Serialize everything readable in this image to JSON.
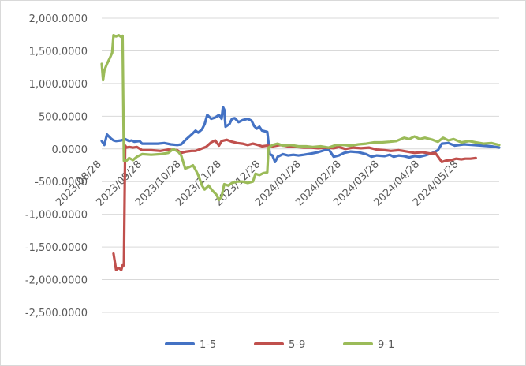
{
  "chart_data": {
    "type": "line",
    "title": "",
    "xlabel": "",
    "ylabel": "",
    "ylim": [
      -2500,
      2000
    ],
    "yticks": [
      "2,000.0000",
      "1,500.0000",
      "1,000.0000",
      "500.0000",
      "0.0000",
      "-500.0000",
      "-1,000.0000",
      "-1,500.0000",
      "-2,000.0000",
      "-2,500.0000"
    ],
    "ytick_values": [
      2000,
      1500,
      1000,
      500,
      0,
      -500,
      -1000,
      -1500,
      -2000,
      -2500
    ],
    "grid": true,
    "legend": "bottom",
    "xlim": [
      "2023/08/28",
      "2024/06/28"
    ],
    "xticks": [
      "2023/08/28",
      "2023/09/28",
      "2023/10/28",
      "2023/11/28",
      "2023/12/28",
      "2024/01/28",
      "2024/02/28",
      "2024/03/28",
      "2024/04/28",
      "2024/05/28"
    ],
    "series": [
      {
        "name": "1-5",
        "color": "#4472C4",
        "points": [
          [
            "2023/08/28",
            120
          ],
          [
            "2023/08/30",
            60
          ],
          [
            "2023/09/01",
            220
          ],
          [
            "2023/09/04",
            160
          ],
          [
            "2023/09/06",
            130
          ],
          [
            "2023/09/08",
            120
          ],
          [
            "2023/09/12",
            130
          ],
          [
            "2023/09/15",
            150
          ],
          [
            "2023/09/18",
            120
          ],
          [
            "2023/09/20",
            130
          ],
          [
            "2023/09/22",
            110
          ],
          [
            "2023/09/26",
            120
          ],
          [
            "2023/09/28",
            80
          ],
          [
            "2023/10/05",
            80
          ],
          [
            "2023/10/10",
            80
          ],
          [
            "2023/10/15",
            90
          ],
          [
            "2023/10/20",
            70
          ],
          [
            "2023/10/25",
            60
          ],
          [
            "2023/10/28",
            70
          ],
          [
            "2023/11/01",
            150
          ],
          [
            "2023/11/05",
            220
          ],
          [
            "2023/11/08",
            280
          ],
          [
            "2023/11/10",
            250
          ],
          [
            "2023/11/13",
            300
          ],
          [
            "2023/11/15",
            380
          ],
          [
            "2023/11/17",
            520
          ],
          [
            "2023/11/20",
            460
          ],
          [
            "2023/11/23",
            480
          ],
          [
            "2023/11/26",
            520
          ],
          [
            "2023/11/28",
            460
          ],
          [
            "2023/11/29",
            640
          ],
          [
            "2023/11/30",
            600
          ],
          [
            "2023/12/01",
            340
          ],
          [
            "2023/12/04",
            380
          ],
          [
            "2023/12/06",
            460
          ],
          [
            "2023/12/08",
            470
          ],
          [
            "2023/12/11",
            410
          ],
          [
            "2023/12/14",
            440
          ],
          [
            "2023/12/18",
            460
          ],
          [
            "2023/12/21",
            430
          ],
          [
            "2023/12/23",
            350
          ],
          [
            "2023/12/25",
            310
          ],
          [
            "2023/12/27",
            340
          ],
          [
            "2023/12/29",
            280
          ],
          [
            "2024/01/02",
            260
          ],
          [
            "2024/01/04",
            -80
          ],
          [
            "2024/01/06",
            -100
          ],
          [
            "2024/01/08",
            -200
          ],
          [
            "2024/01/10",
            -120
          ],
          [
            "2024/01/14",
            -80
          ],
          [
            "2024/01/18",
            -100
          ],
          [
            "2024/01/22",
            -90
          ],
          [
            "2024/01/26",
            -100
          ],
          [
            "2024/01/30",
            -90
          ],
          [
            "2024/02/05",
            -70
          ],
          [
            "2024/02/10",
            -50
          ],
          [
            "2024/02/15",
            -20
          ],
          [
            "2024/02/18",
            0
          ],
          [
            "2024/02/22",
            -120
          ],
          [
            "2024/02/26",
            -100
          ],
          [
            "2024/03/01",
            -60
          ],
          [
            "2024/03/06",
            -40
          ],
          [
            "2024/03/12",
            -50
          ],
          [
            "2024/03/18",
            -80
          ],
          [
            "2024/03/22",
            -120
          ],
          [
            "2024/03/26",
            -100
          ],
          [
            "2024/04/01",
            -110
          ],
          [
            "2024/04/05",
            -90
          ],
          [
            "2024/04/08",
            -120
          ],
          [
            "2024/04/12",
            -100
          ],
          [
            "2024/04/16",
            -110
          ],
          [
            "2024/04/20",
            -130
          ],
          [
            "2024/04/24",
            -110
          ],
          [
            "2024/04/28",
            -120
          ],
          [
            "2024/05/02",
            -100
          ],
          [
            "2024/05/08",
            -60
          ],
          [
            "2024/05/12",
            -20
          ],
          [
            "2024/05/15",
            80
          ],
          [
            "2024/05/20",
            90
          ],
          [
            "2024/05/25",
            50
          ],
          [
            "2024/06/01",
            70
          ],
          [
            "2024/06/08",
            60
          ],
          [
            "2024/06/15",
            50
          ],
          [
            "2024/06/22",
            40
          ],
          [
            "2024/06/28",
            20
          ]
        ]
      },
      {
        "name": "5-9",
        "color": "#C0504D",
        "points": [
          [
            "2023/09/06",
            -1600
          ],
          [
            "2023/09/08",
            -1850
          ],
          [
            "2023/09/10",
            -1820
          ],
          [
            "2023/09/12",
            -1850
          ],
          [
            "2023/09/13",
            -1780
          ],
          [
            "2023/09/14",
            -1780
          ],
          [
            "2023/09/15",
            50
          ],
          [
            "2023/09/16",
            20
          ],
          [
            "2023/09/18",
            30
          ],
          [
            "2023/09/21",
            20
          ],
          [
            "2023/09/24",
            30
          ],
          [
            "2023/09/28",
            -20
          ],
          [
            "2023/10/05",
            -20
          ],
          [
            "2023/10/12",
            -30
          ],
          [
            "2023/10/18",
            -10
          ],
          [
            "2023/10/25",
            -20
          ],
          [
            "2023/10/28",
            -60
          ],
          [
            "2023/11/01",
            -40
          ],
          [
            "2023/11/05",
            -30
          ],
          [
            "2023/11/08",
            -30
          ],
          [
            "2023/11/12",
            0
          ],
          [
            "2023/11/16",
            30
          ],
          [
            "2023/11/20",
            100
          ],
          [
            "2023/11/23",
            130
          ],
          [
            "2023/11/26",
            50
          ],
          [
            "2023/11/28",
            120
          ],
          [
            "2023/12/02",
            140
          ],
          [
            "2023/12/06",
            110
          ],
          [
            "2023/12/10",
            90
          ],
          [
            "2023/12/14",
            80
          ],
          [
            "2023/12/18",
            60
          ],
          [
            "2023/12/22",
            80
          ],
          [
            "2023/12/26",
            60
          ],
          [
            "2023/12/29",
            40
          ],
          [
            "2024/01/02",
            50
          ],
          [
            "2024/01/06",
            40
          ],
          [
            "2024/01/12",
            60
          ],
          [
            "2024/01/18",
            40
          ],
          [
            "2024/01/24",
            30
          ],
          [
            "2024/01/30",
            20
          ],
          [
            "2024/02/05",
            20
          ],
          [
            "2024/02/10",
            10
          ],
          [
            "2024/02/16",
            20
          ],
          [
            "2024/02/22",
            10
          ],
          [
            "2024/02/26",
            30
          ],
          [
            "2024/03/02",
            0
          ],
          [
            "2024/03/08",
            20
          ],
          [
            "2024/03/14",
            10
          ],
          [
            "2024/03/20",
            20
          ],
          [
            "2024/03/26",
            -10
          ],
          [
            "2024/04/01",
            -20
          ],
          [
            "2024/04/06",
            -30
          ],
          [
            "2024/04/12",
            -20
          ],
          [
            "2024/04/18",
            -40
          ],
          [
            "2024/04/24",
            -60
          ],
          [
            "2024/04/30",
            -50
          ],
          [
            "2024/05/06",
            -70
          ],
          [
            "2024/05/10",
            -60
          ],
          [
            "2024/05/15",
            -200
          ],
          [
            "2024/05/18",
            -180
          ],
          [
            "2024/05/22",
            -170
          ],
          [
            "2024/05/26",
            -150
          ],
          [
            "2024/05/30",
            -160
          ],
          [
            "2024/06/02",
            -150
          ],
          [
            "2024/06/06",
            -150
          ],
          [
            "2024/06/10",
            -140
          ]
        ]
      },
      {
        "name": "9-1",
        "color": "#9BBB59",
        "points": [
          [
            "2023/08/28",
            1300
          ],
          [
            "2023/08/29",
            1050
          ],
          [
            "2023/08/30",
            1200
          ],
          [
            "2023/09/01",
            1300
          ],
          [
            "2023/09/03",
            1380
          ],
          [
            "2023/09/05",
            1470
          ],
          [
            "2023/09/06",
            1740
          ],
          [
            "2023/09/08",
            1720
          ],
          [
            "2023/09/10",
            1740
          ],
          [
            "2023/09/12",
            1710
          ],
          [
            "2023/09/13",
            1730
          ],
          [
            "2023/09/14",
            -180
          ],
          [
            "2023/09/16",
            -180
          ],
          [
            "2023/09/18",
            -140
          ],
          [
            "2023/09/21",
            -170
          ],
          [
            "2023/09/24",
            -120
          ],
          [
            "2023/09/28",
            -80
          ],
          [
            "2023/10/05",
            -90
          ],
          [
            "2023/10/12",
            -80
          ],
          [
            "2023/10/18",
            -60
          ],
          [
            "2023/10/22",
            0
          ],
          [
            "2023/10/26",
            -50
          ],
          [
            "2023/10/28",
            -100
          ],
          [
            "2023/10/31",
            -300
          ],
          [
            "2023/11/03",
            -280
          ],
          [
            "2023/11/06",
            -250
          ],
          [
            "2023/11/08",
            -320
          ],
          [
            "2023/11/10",
            -400
          ],
          [
            "2023/11/13",
            -560
          ],
          [
            "2023/11/15",
            -620
          ],
          [
            "2023/11/18",
            -560
          ],
          [
            "2023/11/21",
            -640
          ],
          [
            "2023/11/24",
            -700
          ],
          [
            "2023/11/26",
            -780
          ],
          [
            "2023/11/28",
            -730
          ],
          [
            "2023/11/30",
            -540
          ],
          [
            "2023/12/03",
            -560
          ],
          [
            "2023/12/06",
            -520
          ],
          [
            "2023/12/10",
            -500
          ],
          [
            "2023/12/14",
            -500
          ],
          [
            "2023/12/18",
            -520
          ],
          [
            "2023/12/22",
            -500
          ],
          [
            "2023/12/24",
            -380
          ],
          [
            "2023/12/27",
            -400
          ],
          [
            "2023/12/30",
            -370
          ],
          [
            "2024/01/02",
            -360
          ],
          [
            "2024/01/03",
            20
          ],
          [
            "2024/01/06",
            60
          ],
          [
            "2024/01/10",
            80
          ],
          [
            "2024/01/14",
            50
          ],
          [
            "2024/01/20",
            60
          ],
          [
            "2024/01/26",
            40
          ],
          [
            "2024/02/01",
            40
          ],
          [
            "2024/02/06",
            30
          ],
          [
            "2024/02/12",
            40
          ],
          [
            "2024/02/18",
            20
          ],
          [
            "2024/02/24",
            60
          ],
          [
            "2024/03/01",
            60
          ],
          [
            "2024/03/06",
            50
          ],
          [
            "2024/03/12",
            70
          ],
          [
            "2024/03/18",
            80
          ],
          [
            "2024/03/24",
            100
          ],
          [
            "2024/03/30",
            100
          ],
          [
            "2024/04/05",
            110
          ],
          [
            "2024/04/10",
            120
          ],
          [
            "2024/04/16",
            170
          ],
          [
            "2024/04/20",
            150
          ],
          [
            "2024/04/24",
            190
          ],
          [
            "2024/04/28",
            150
          ],
          [
            "2024/05/02",
            170
          ],
          [
            "2024/05/08",
            140
          ],
          [
            "2024/05/12",
            110
          ],
          [
            "2024/05/16",
            170
          ],
          [
            "2024/05/20",
            130
          ],
          [
            "2024/05/24",
            150
          ],
          [
            "2024/05/30",
            100
          ],
          [
            "2024/06/05",
            120
          ],
          [
            "2024/06/10",
            100
          ],
          [
            "2024/06/16",
            80
          ],
          [
            "2024/06/22",
            90
          ],
          [
            "2024/06/28",
            60
          ]
        ]
      }
    ]
  }
}
